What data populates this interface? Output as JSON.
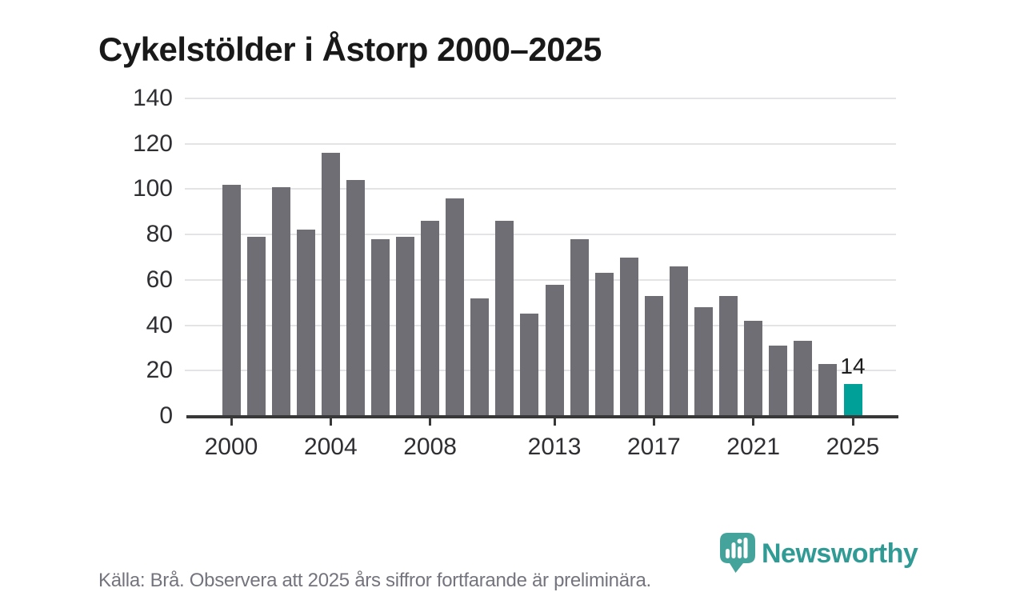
{
  "title": "Cykelstölder i Åstorp 2000–2025",
  "footer": {
    "source_note": "Källa: Brå. Observera att 2025 års siffror fortfarande är preliminära.",
    "brand": "Newsworthy"
  },
  "colors": {
    "bar": "#6e6e74",
    "highlight": "#00a099",
    "grid": "#e4e4e6",
    "axis": "#383838",
    "tick_label": "#2f2f33",
    "title": "#191919",
    "footer_text": "#74747e",
    "brand_text": "#2f9b94",
    "logo_fill": "#44a39b"
  },
  "chart_data": {
    "type": "bar",
    "title": "Cykelstölder i Åstorp 2000–2025",
    "categories": [
      "2000",
      "2001",
      "2002",
      "2003",
      "2004",
      "2005",
      "2006",
      "2007",
      "2008",
      "2009",
      "2010",
      "2011",
      "2012",
      "2013",
      "2014",
      "2015",
      "2016",
      "2017",
      "2018",
      "2019",
      "2020",
      "2021",
      "2022",
      "2023",
      "2024",
      "2025"
    ],
    "values": [
      102,
      79,
      101,
      82,
      116,
      104,
      78,
      79,
      86,
      96,
      52,
      86,
      45,
      58,
      78,
      63,
      70,
      53,
      66,
      48,
      53,
      42,
      31,
      33,
      23,
      14
    ],
    "ylim": [
      0,
      140
    ],
    "yticks": [
      0,
      20,
      40,
      60,
      80,
      100,
      120,
      140
    ],
    "xticks": [
      {
        "index": 0,
        "label": "2000"
      },
      {
        "index": 4,
        "label": "2004"
      },
      {
        "index": 8,
        "label": "2008"
      },
      {
        "index": 13,
        "label": "2013"
      },
      {
        "index": 17,
        "label": "2017"
      },
      {
        "index": 21,
        "label": "2021"
      },
      {
        "index": 25,
        "label": "2025"
      }
    ],
    "highlight": {
      "index": 25,
      "label": "14"
    },
    "legend": false,
    "grid": "horizontal"
  }
}
